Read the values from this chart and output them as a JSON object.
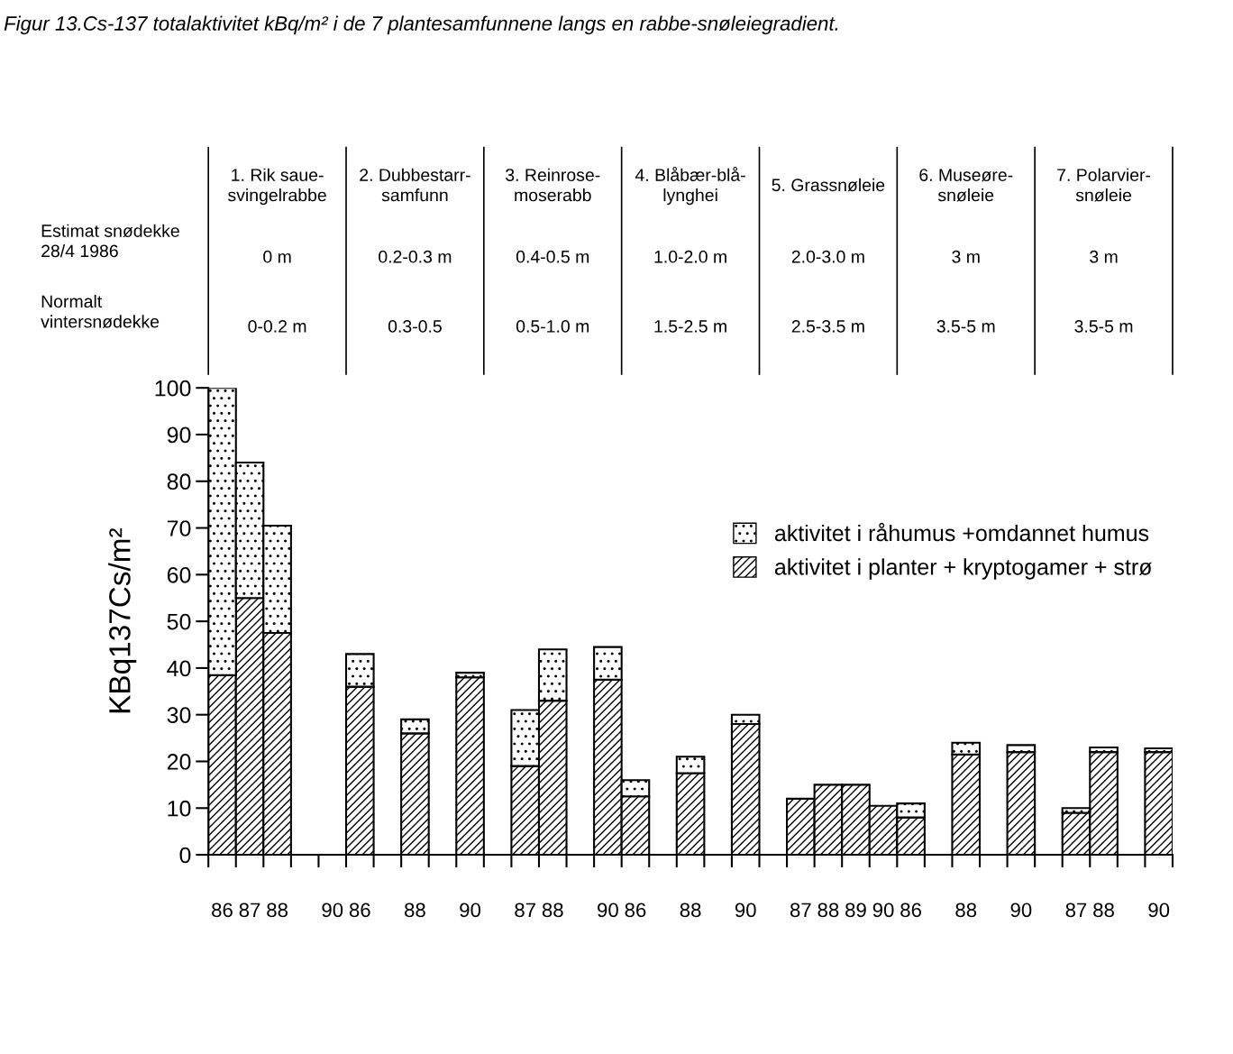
{
  "chart_data": {
    "type": "bar",
    "stacked": true,
    "title": "Figur 13.Cs-137 totalaktivitet kBq/m² i de 7 plantesamfunnene langs en rabbe-snøleiegradient.",
    "ylabel": "KBq137Cs/m²",
    "categories": [
      "86",
      "87",
      "88",
      null,
      "90",
      "86",
      null,
      "88",
      null,
      "90",
      null,
      "87",
      "88",
      null,
      "90",
      "86",
      null,
      "88",
      null,
      "90",
      null,
      "87",
      "88",
      "89",
      "90",
      "86",
      null,
      "88",
      null,
      "90",
      null,
      "87",
      "88",
      null,
      "90"
    ],
    "series": [
      {
        "name": "aktivitet i planter + kryptogamer + strø",
        "color": "#000000",
        "values": [
          38.5,
          55,
          47.5,
          null,
          null,
          36,
          null,
          26,
          null,
          38,
          null,
          19,
          33,
          null,
          37.5,
          12.5,
          null,
          17.5,
          null,
          28,
          null,
          12,
          15,
          15,
          10.5,
          8,
          null,
          21.5,
          null,
          22,
          null,
          9,
          22,
          null,
          22
        ]
      },
      {
        "name": "aktivitet i råhumus +omdannet humus",
        "color": "#000000",
        "values": [
          61.5,
          29,
          23,
          null,
          null,
          7,
          null,
          3,
          null,
          1,
          null,
          12,
          11,
          null,
          7,
          3.5,
          null,
          3.5,
          null,
          2,
          null,
          null,
          null,
          null,
          null,
          3,
          null,
          2.5,
          null,
          1.5,
          null,
          1,
          1,
          null,
          0.8
        ]
      }
    ],
    "ylim": [
      0,
      100
    ],
    "yticks": [
      0,
      10,
      20,
      30,
      40,
      50,
      60,
      70,
      80,
      90,
      100
    ],
    "legend": "right",
    "annotations": [
      "Estimat snødekke\n28/4 1986",
      "Normalt\nvintersnødekke",
      "1. Rik saue-\nsvingelrabbe",
      "2. Dubbestarr-\nsamfunn",
      "3. Reinrose-\nmoserabb",
      "4. Blåbær-blå-\nlynghei",
      "5. Grassnøleie",
      "6. Museøre-\nsnøleie",
      "7. Polarvier-\nsnøleie",
      "0 m",
      "0.2-0.3 m",
      "0.4-0.5 m",
      "1.0-2.0 m",
      "2.0-3.0 m",
      "3 m",
      "3 m",
      "0-0.2 m",
      "0.3-0.5",
      "0.5-1.0 m",
      "1.5-2.5 m",
      "2.5-3.5 m",
      "3.5-5 m",
      "3.5-5 m"
    ]
  }
}
